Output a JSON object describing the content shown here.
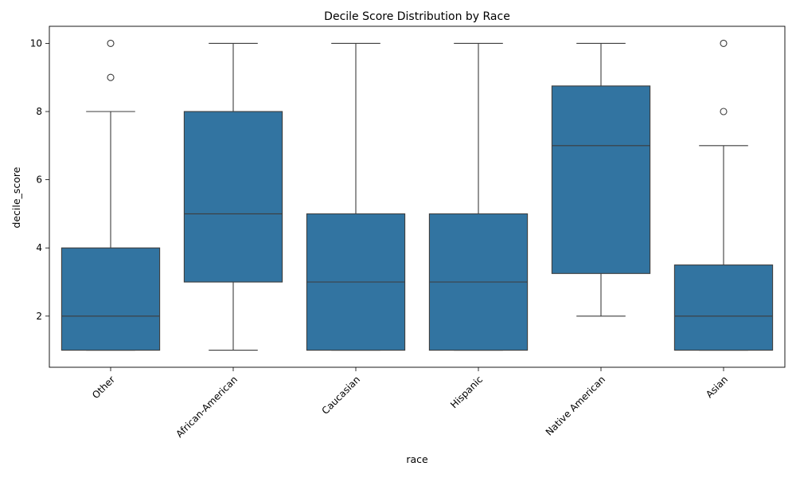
{
  "chart_data": {
    "type": "box",
    "title": "Decile Score Distribution by Race",
    "xlabel": "race",
    "ylabel": "decile_score",
    "ylim": [
      0.5,
      10.5
    ],
    "yticks": [
      2,
      4,
      6,
      8,
      10
    ],
    "grid": false,
    "colors": {
      "box": "#3274a1",
      "line": "#3d3d3d"
    },
    "categories": [
      "Other",
      "African-American",
      "Caucasian",
      "Hispanic",
      "Native American",
      "Asian"
    ],
    "series": [
      {
        "category": "Other",
        "q1": 1,
        "median": 2,
        "q3": 4,
        "whisker_low": 1,
        "whisker_high": 8,
        "outliers": [
          9,
          10
        ]
      },
      {
        "category": "African-American",
        "q1": 3,
        "median": 5,
        "q3": 8,
        "whisker_low": 1,
        "whisker_high": 10,
        "outliers": []
      },
      {
        "category": "Caucasian",
        "q1": 1,
        "median": 3,
        "q3": 5,
        "whisker_low": 1,
        "whisker_high": 10,
        "outliers": []
      },
      {
        "category": "Hispanic",
        "q1": 1,
        "median": 3,
        "q3": 5,
        "whisker_low": 1,
        "whisker_high": 10,
        "outliers": []
      },
      {
        "category": "Native American",
        "q1": 3.25,
        "median": 7,
        "q3": 8.75,
        "whisker_low": 2,
        "whisker_high": 10,
        "outliers": []
      },
      {
        "category": "Asian",
        "q1": 1,
        "median": 2,
        "q3": 3.5,
        "whisker_low": 1,
        "whisker_high": 7,
        "outliers": [
          8,
          10
        ]
      }
    ]
  }
}
